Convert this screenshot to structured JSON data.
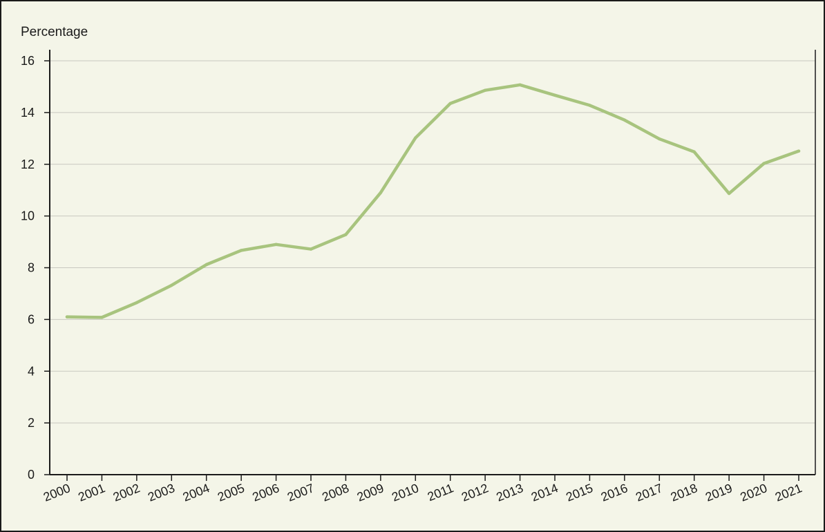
{
  "chart_data": {
    "type": "line",
    "title": "",
    "xlabel": "",
    "ylabel": "Percentage",
    "ylim": [
      0,
      16
    ],
    "yticks": [
      0,
      2,
      4,
      6,
      8,
      10,
      12,
      14,
      16
    ],
    "grid": true,
    "categories": [
      "2000",
      "2001",
      "2002",
      "2003",
      "2004",
      "2005",
      "2006",
      "2007",
      "2008",
      "2009",
      "2010",
      "2011",
      "2012",
      "2013",
      "2014",
      "2015",
      "2016",
      "2017",
      "2018",
      "2019",
      "2020",
      "2021"
    ],
    "series": [
      {
        "values": [
          6.1,
          6.08,
          6.65,
          7.32,
          8.12,
          8.67,
          8.9,
          8.72,
          9.28,
          10.9,
          13.02,
          14.35,
          14.86,
          15.07,
          14.67,
          14.28,
          13.71,
          12.98,
          12.48,
          10.87,
          12.03,
          12.51
        ],
        "color": "#a8c47e"
      }
    ]
  }
}
